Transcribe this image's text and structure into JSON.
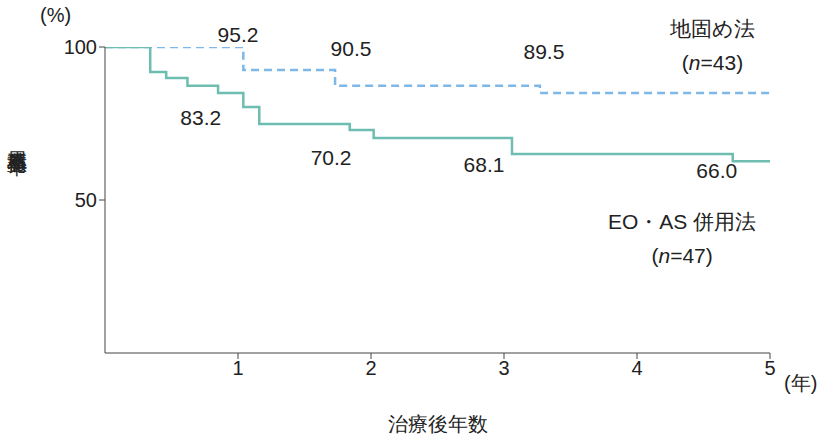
{
  "chart_data": {
    "type": "line",
    "x_label": "治療後年数",
    "x_unit": "(年)",
    "y_label": "累積非再発率",
    "y_unit": "(%)",
    "xlim": [
      0,
      5
    ],
    "xticks": [
      1,
      2,
      3,
      4,
      5
    ],
    "ylim": [
      0,
      100
    ],
    "yticks": [
      50,
      100
    ],
    "grid": false,
    "series": [
      {
        "name": "地固め法",
        "note": "(n=43)",
        "color": "#7db8e8",
        "line_style": "dashed",
        "x": [
          0,
          1.04,
          1.73,
          3.27,
          5
        ],
        "values": [
          100,
          92.5,
          87.3,
          85,
          85
        ],
        "annotations": [
          {
            "x": 1,
            "value": 95.2,
            "label": "95.2"
          },
          {
            "x": 1.85,
            "value": 90.5,
            "label": "90.5"
          },
          {
            "x": 3.3,
            "value": 89.5,
            "label": "89.5"
          }
        ]
      },
      {
        "name": "EO・AS 併用法",
        "note": "(n=47)",
        "color": "#6dbdb0",
        "line_style": "solid",
        "x": [
          0,
          0.34,
          0.46,
          0.62,
          0.85,
          1.04,
          1.16,
          1.84,
          2.02,
          3.06,
          4.72,
          5
        ],
        "values": [
          100,
          91.8,
          89.9,
          87.3,
          85,
          80.4,
          74.8,
          72.9,
          70.3,
          65,
          62.7,
          62.7
        ],
        "annotations": [
          {
            "x": 0.72,
            "value": 83.2,
            "label": "83.2"
          },
          {
            "x": 1.7,
            "value": 70.2,
            "label": "70.2"
          },
          {
            "x": 2.85,
            "value": 68.1,
            "label": "68.1"
          },
          {
            "x": 4.6,
            "value": 66.0,
            "label": "66.0"
          }
        ]
      }
    ]
  }
}
